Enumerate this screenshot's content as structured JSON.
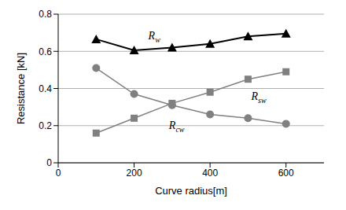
{
  "chart_data": {
    "type": "line",
    "x_label": "Curve radius[m]",
    "y_label": "Resistance [kN]",
    "x": [
      100,
      200,
      300,
      400,
      500,
      600
    ],
    "series": [
      {
        "name": "Rw",
        "color": "#000000",
        "marker": "triangle",
        "line_style": "solid",
        "values": [
          0.665,
          0.605,
          0.62,
          0.64,
          0.68,
          0.695
        ]
      },
      {
        "name": "Rsw",
        "color": "#808080",
        "marker": "square",
        "line_style": "solid",
        "values": [
          0.16,
          0.24,
          0.32,
          0.38,
          0.45,
          0.49
        ]
      },
      {
        "name": "Rcw",
        "color": "#808080",
        "marker": "circle",
        "line_style": "solid",
        "values": [
          0.51,
          0.37,
          0.31,
          0.26,
          0.24,
          0.21
        ]
      }
    ],
    "xlim": [
      0,
      700
    ],
    "xticks": [
      0,
      200,
      400,
      600
    ],
    "ylim": [
      0,
      0.8
    ],
    "yticks": [
      0,
      0.2,
      0.4,
      0.6,
      0.8
    ],
    "grid": true
  }
}
